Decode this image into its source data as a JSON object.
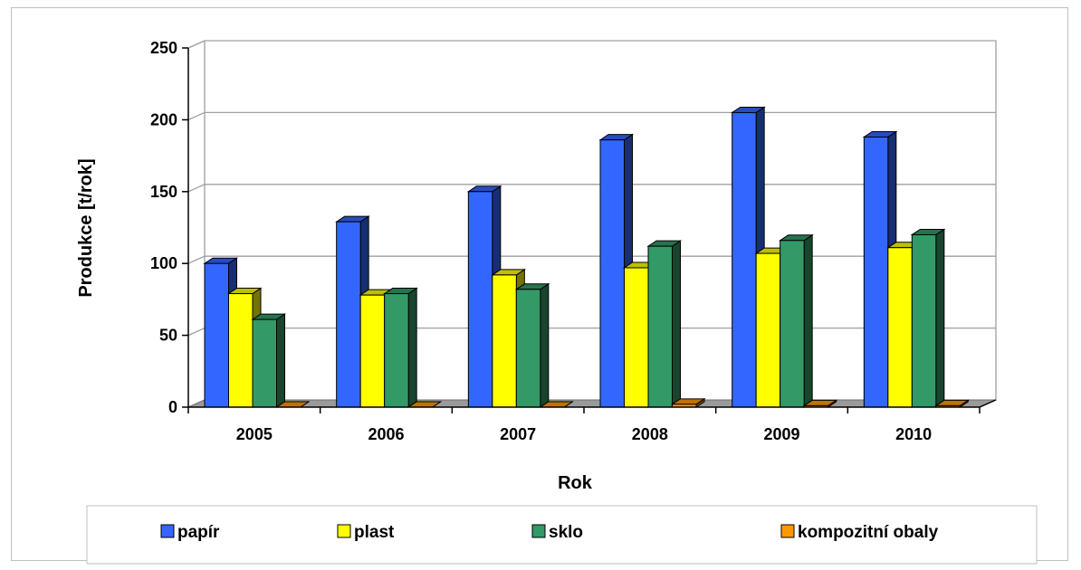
{
  "chart_data": {
    "type": "bar",
    "title": "",
    "xlabel": "Rok",
    "ylabel": "Produkce [t/rok]",
    "ylim": [
      0,
      250
    ],
    "yticks": [
      "0",
      "50",
      "100",
      "150",
      "200",
      "250"
    ],
    "categories": [
      "2005",
      "2006",
      "2007",
      "2008",
      "2009",
      "2010"
    ],
    "series": [
      {
        "name": "papír",
        "values": [
          100,
          129,
          150,
          186,
          205,
          188
        ]
      },
      {
        "name": "plast",
        "values": [
          79,
          78,
          92,
          97,
          107,
          111
        ]
      },
      {
        "name": "sklo",
        "values": [
          61,
          79,
          82,
          112,
          116,
          120
        ]
      },
      {
        "name": "kompozitní obaly",
        "values": [
          0,
          0,
          0,
          2,
          1,
          1
        ]
      }
    ],
    "grid": true,
    "legend_position": "bottom",
    "colors": {
      "papír": "#3366ff",
      "plast": "#ffff00",
      "sklo": "#339966",
      "kompozitní obaly": "#ff9900"
    }
  }
}
